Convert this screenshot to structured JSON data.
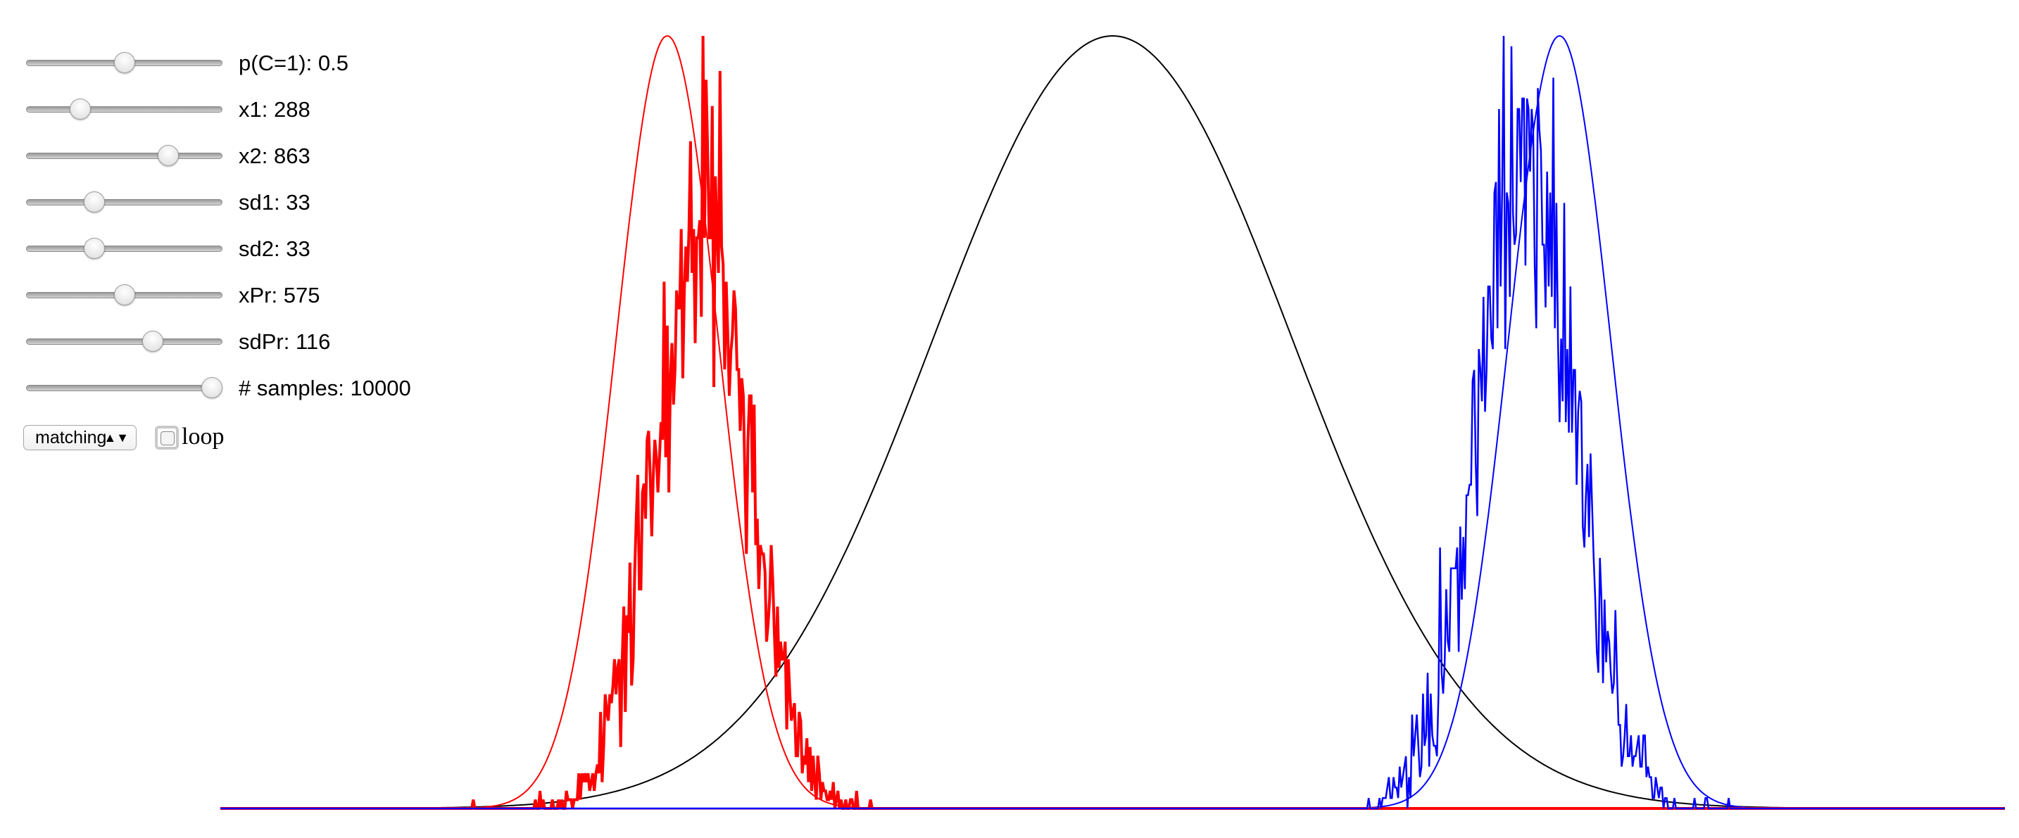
{
  "sliders": [
    {
      "label": "p(C=1):",
      "value": 0.5,
      "min": 0,
      "max": 1
    },
    {
      "label": "x1:",
      "value": 288,
      "min": 0,
      "max": 1150
    },
    {
      "label": "x2:",
      "value": 863,
      "min": 0,
      "max": 1150
    },
    {
      "label": "sd1:",
      "value": 33,
      "min": 0,
      "max": 100
    },
    {
      "label": "sd2:",
      "value": 33,
      "min": 0,
      "max": 100
    },
    {
      "label": "xPr:",
      "value": 575,
      "min": 0,
      "max": 1150
    },
    {
      "label": "sdPr:",
      "value": 116,
      "min": 0,
      "max": 175
    },
    {
      "label": "# samples:",
      "value": 10000,
      "min": 0,
      "max": 10000
    }
  ],
  "mode": "matching",
  "loop": "loop"
}
